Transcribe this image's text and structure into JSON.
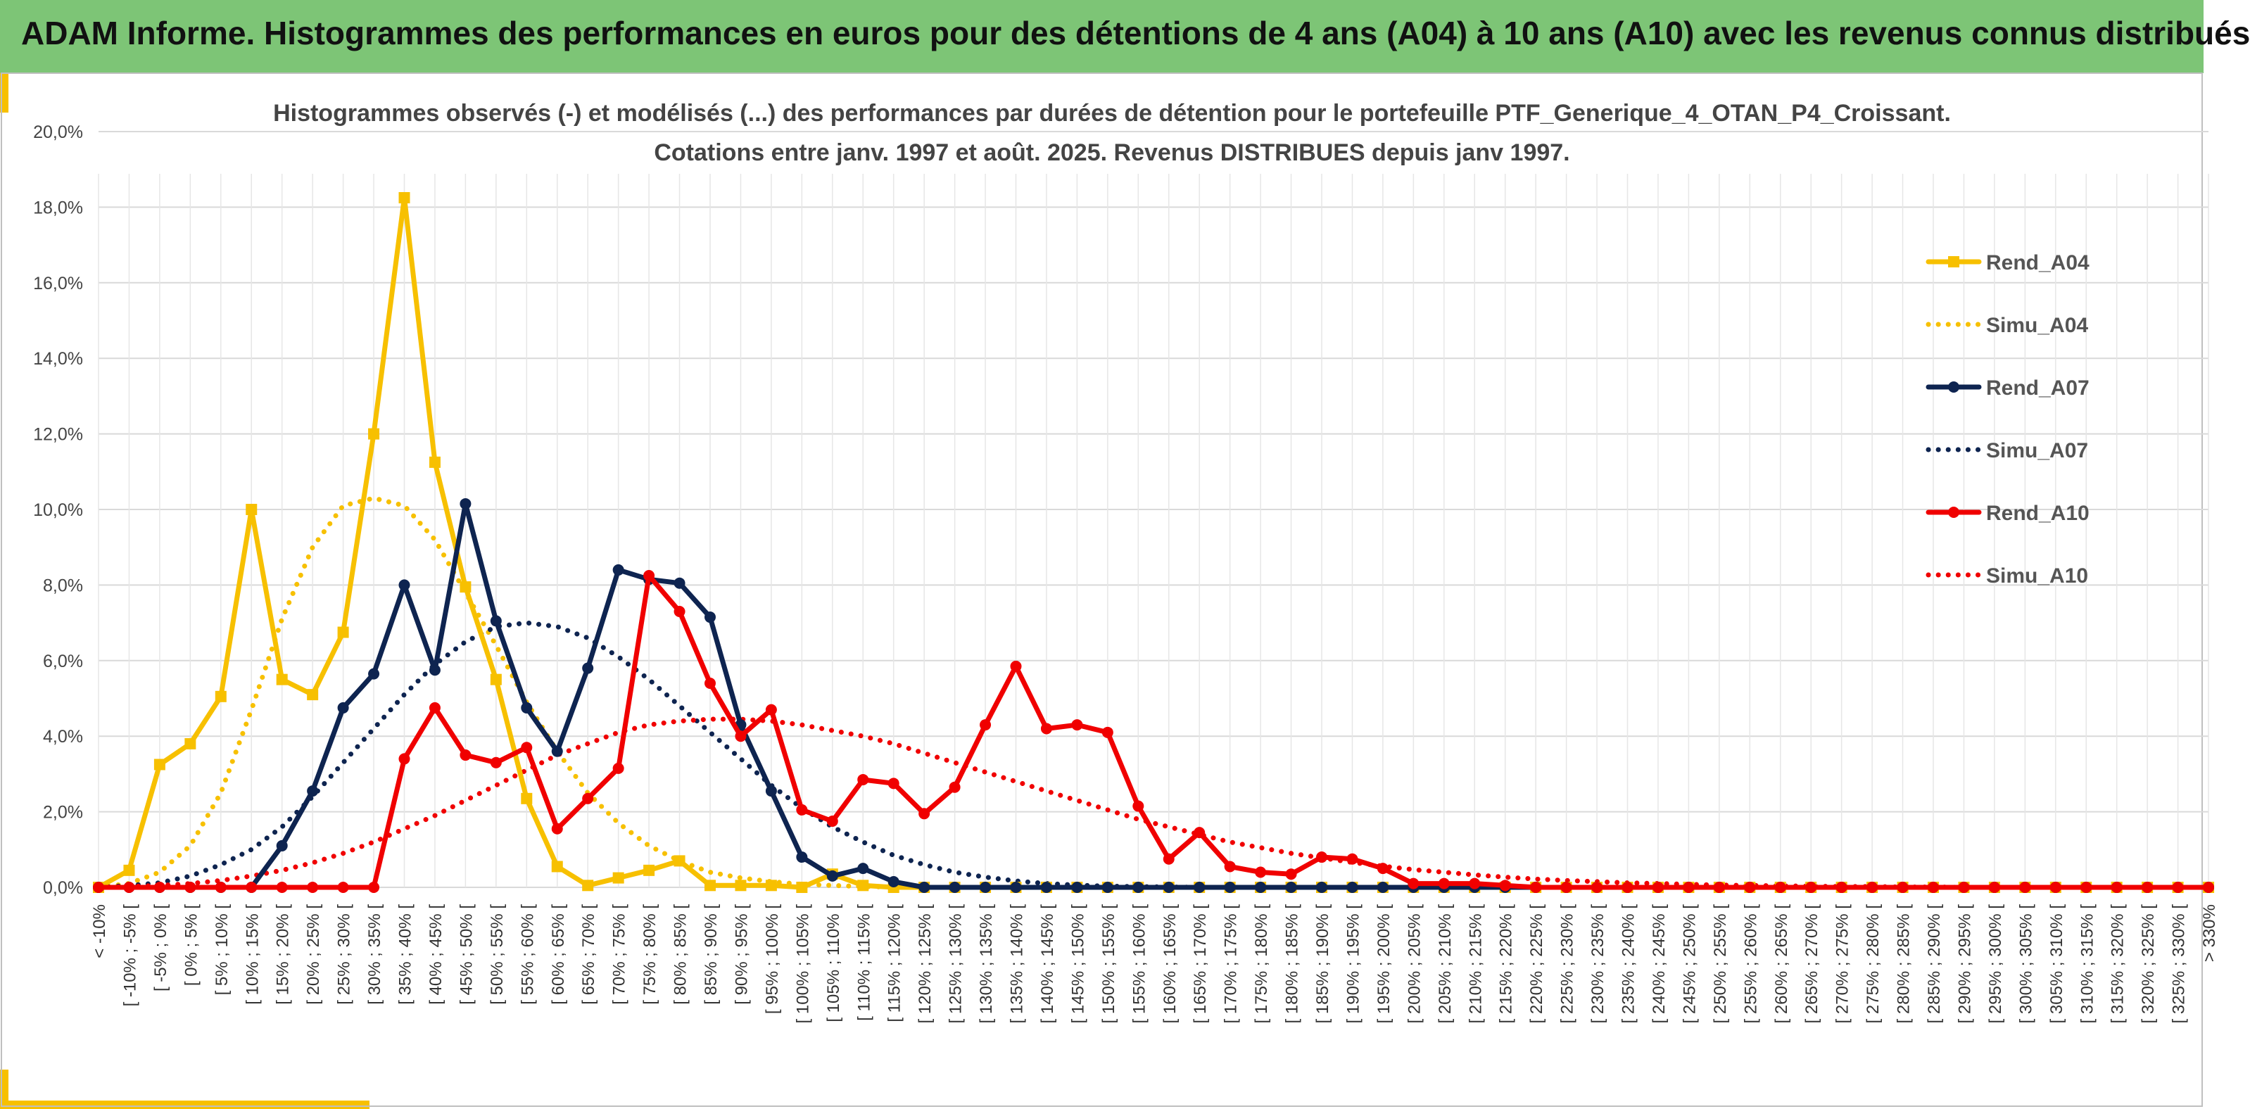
{
  "header": {
    "title": "ADAM Informe. Histogrammes des performances en euros pour des détentions de 4 ans (A04) à 10 ans (A10) avec les revenus connus distribués"
  },
  "colors": {
    "header_bg": "#7dc576",
    "A04": "#f7c000",
    "A07": "#0e2450",
    "A10": "#f00000",
    "grid": "#d9d9d9",
    "accent": "#f7c000"
  },
  "chart_data": {
    "type": "line",
    "title": "Histogrammes observés (-) et modélisés (...) des performances par durées de détention pour le portefeuille PTF_Generique_4_OTAN_P4_Croissant.",
    "subtitle": "Cotations entre janv. 1997 et août. 2025. Revenus DISTRIBUES depuis janv 1997.",
    "ylim": [
      0,
      20
    ],
    "yticks": [
      "0,0%",
      "2,0%",
      "4,0%",
      "6,0%",
      "8,0%",
      "10,0%",
      "12,0%",
      "14,0%",
      "16,0%",
      "18,0%",
      "20,0%"
    ],
    "grid": true,
    "legend_position": "right",
    "categories": [
      "< -10%",
      "[ -10% ; -5% [",
      "[ -5% ; 0% [",
      "[ 0% ; 5% [",
      "[ 5% ; 10% [",
      "[ 10% ; 15% [",
      "[ 15% ; 20% [",
      "[ 20% ; 25% [",
      "[ 25% ; 30% [",
      "[ 30% ; 35% [",
      "[ 35% ; 40% [",
      "[ 40% ; 45% [",
      "[ 45% ; 50% [",
      "[ 50% ; 55% [",
      "[ 55% ; 60% [",
      "[ 60% ; 65% [",
      "[ 65% ; 70% [",
      "[ 70% ; 75% [",
      "[ 75% ; 80% [",
      "[ 80% ; 85% [",
      "[ 85% ; 90% [",
      "[ 90% ; 95% [",
      "[ 95% ; 100% [",
      "[ 100% ; 105% [",
      "[ 105% ; 110% [",
      "[ 110% ; 115% [",
      "[ 115% ; 120% [",
      "[ 120% ; 125% [",
      "[ 125% ; 130% [",
      "[ 130% ; 135% [",
      "[ 135% ; 140% [",
      "[ 140% ; 145% [",
      "[ 145% ; 150% [",
      "[ 150% ; 155% [",
      "[ 155% ; 160% [",
      "[ 160% ; 165% [",
      "[ 165% ; 170% [",
      "[ 170% ; 175% [",
      "[ 175% ; 180% [",
      "[ 180% ; 185% [",
      "[ 185% ; 190% [",
      "[ 190% ; 195% [",
      "[ 195% ; 200% [",
      "[ 200% ; 205% [",
      "[ 205% ; 210% [",
      "[ 210% ; 215% [",
      "[ 215% ; 220% [",
      "[ 220% ; 225% [",
      "[ 225% ; 230% [",
      "[ 230% ; 235% [",
      "[ 235% ; 240% [",
      "[ 240% ; 245% [",
      "[ 245% ; 250% [",
      "[ 250% ; 255% [",
      "[ 255% ; 260% [",
      "[ 260% ; 265% [",
      "[ 265% ; 270% [",
      "[ 270% ; 275% [",
      "[ 275% ; 280% [",
      "[ 280% ; 285% [",
      "[ 285% ; 290% [",
      "[ 290% ; 295% [",
      "[ 295% ; 300% [",
      "[ 300% ; 305% [",
      "[ 305% ; 310% [",
      "[ 310% ; 315% [",
      "[ 315% ; 320% [",
      "[ 320% ; 325% [",
      "[ 325% ; 330% [",
      "> 330%"
    ],
    "series": [
      {
        "name": "Rend_A04",
        "style": "solid",
        "marker": "square",
        "color": "#f7c000",
        "values": [
          0,
          0.45,
          3.25,
          3.8,
          5.05,
          10.0,
          5.5,
          5.1,
          6.75,
          12.0,
          18.25,
          11.25,
          7.95,
          5.5,
          2.35,
          0.55,
          0.05,
          0.25,
          0.45,
          0.7,
          0.05,
          0.05,
          0.05,
          0.0,
          0.35,
          0.05,
          0.0,
          0.0,
          0.0,
          0.0,
          0.0,
          0.0,
          0.0,
          0.0,
          0.0,
          0.0,
          0.0,
          0.0,
          0.0,
          0.0,
          0.0,
          0.0,
          0.0,
          0.0,
          0.0,
          0.0,
          0.0,
          0.0,
          0.0,
          0.0,
          0.0,
          0.0,
          0.0,
          0.0,
          0.0,
          0.0,
          0.0,
          0.0,
          0.0,
          0.0,
          0.0,
          0.0,
          0.0,
          0.0,
          0.0,
          0.0,
          0.0,
          0.0,
          0.0,
          0.0
        ]
      },
      {
        "name": "Simu_A04",
        "style": "dotted",
        "marker": "none",
        "color": "#f7c000",
        "values": [
          0.0,
          0.1,
          0.4,
          1.1,
          2.5,
          4.7,
          7.1,
          9.0,
          10.1,
          10.3,
          10.1,
          9.2,
          7.8,
          6.4,
          4.9,
          3.6,
          2.5,
          1.7,
          1.1,
          0.7,
          0.4,
          0.25,
          0.15,
          0.08,
          0.05,
          0.02,
          0.01,
          0.0,
          0.0,
          0.0,
          0.0,
          0.0,
          0.0,
          0.0,
          0.0,
          0.0,
          0.0,
          0.0,
          0.0,
          0.0,
          0.0,
          0.0,
          0.0,
          0.0,
          0.0,
          0.0,
          0.0,
          0.0,
          0.0,
          0.0,
          0.0,
          0.0,
          0.0,
          0.0,
          0.0,
          0.0,
          0.0,
          0.0,
          0.0,
          0.0,
          0.0,
          0.0,
          0.0,
          0.0,
          0.0,
          0.0,
          0.0,
          0.0,
          0.0,
          0.0
        ]
      },
      {
        "name": "Rend_A07",
        "style": "solid",
        "marker": "circle",
        "color": "#0e2450",
        "values": [
          0,
          0,
          0,
          0,
          0,
          0,
          1.1,
          2.55,
          4.75,
          5.65,
          8.0,
          5.75,
          10.15,
          7.05,
          4.75,
          3.6,
          5.8,
          8.4,
          8.15,
          8.05,
          7.15,
          4.3,
          2.55,
          0.8,
          0.3,
          0.5,
          0.15,
          0.0,
          0.0,
          0.0,
          0.0,
          0.0,
          0.0,
          0.0,
          0.0,
          0.0,
          0.0,
          0.0,
          0.0,
          0.0,
          0.0,
          0.0,
          0.0,
          0.0,
          0.0,
          0.0,
          0.0,
          0.0,
          0.0,
          0.0,
          0.0,
          0.0,
          0.0,
          0.0,
          0.0,
          0.0,
          0.0,
          0.0,
          0.0,
          0.0,
          0.0,
          0.0,
          0.0,
          0.0,
          0.0,
          0.0,
          0.0,
          0.0,
          0.0,
          0.0
        ]
      },
      {
        "name": "Simu_A07",
        "style": "dotted",
        "marker": "none",
        "color": "#0e2450",
        "values": [
          0.0,
          0.05,
          0.12,
          0.3,
          0.6,
          1.0,
          1.6,
          2.4,
          3.3,
          4.2,
          5.1,
          5.9,
          6.5,
          6.9,
          7.0,
          6.9,
          6.6,
          6.1,
          5.5,
          4.8,
          4.1,
          3.4,
          2.7,
          2.1,
          1.6,
          1.2,
          0.85,
          0.6,
          0.4,
          0.27,
          0.17,
          0.1,
          0.06,
          0.03,
          0.02,
          0.01,
          0.0,
          0.0,
          0.0,
          0.0,
          0.0,
          0.0,
          0.0,
          0.0,
          0.0,
          0.0,
          0.0,
          0.0,
          0.0,
          0.0,
          0.0,
          0.0,
          0.0,
          0.0,
          0.0,
          0.0,
          0.0,
          0.0,
          0.0,
          0.0,
          0.0,
          0.0,
          0.0,
          0.0,
          0.0,
          0.0,
          0.0,
          0.0,
          0.0,
          0.0
        ]
      },
      {
        "name": "Rend_A10",
        "style": "solid",
        "marker": "circle",
        "color": "#f00000",
        "values": [
          0,
          0,
          0,
          0,
          0,
          0,
          0,
          0,
          0,
          0,
          3.4,
          4.75,
          3.5,
          3.3,
          3.7,
          1.55,
          2.35,
          3.15,
          8.25,
          7.3,
          5.4,
          4.0,
          4.7,
          2.05,
          1.75,
          2.85,
          2.75,
          1.95,
          2.65,
          4.3,
          5.85,
          4.2,
          4.3,
          4.1,
          2.15,
          0.75,
          1.45,
          0.55,
          0.4,
          0.35,
          0.8,
          0.75,
          0.5,
          0.1,
          0.1,
          0.1,
          0.05,
          0.0,
          0.0,
          0.0,
          0.0,
          0.0,
          0.0,
          0.0,
          0.0,
          0.0,
          0.0,
          0.0,
          0.0,
          0.0,
          0.0,
          0.0,
          0.0,
          0.0,
          0.0,
          0.0,
          0.0,
          0.0,
          0.0,
          0.0
        ]
      },
      {
        "name": "Simu_A10",
        "style": "dotted",
        "marker": "none",
        "color": "#f00000",
        "values": [
          0.0,
          0.02,
          0.05,
          0.1,
          0.18,
          0.3,
          0.45,
          0.65,
          0.9,
          1.2,
          1.55,
          1.9,
          2.3,
          2.7,
          3.1,
          3.5,
          3.8,
          4.1,
          4.3,
          4.4,
          4.45,
          4.45,
          4.4,
          4.3,
          4.15,
          4.0,
          3.8,
          3.55,
          3.3,
          3.05,
          2.8,
          2.55,
          2.3,
          2.05,
          1.8,
          1.6,
          1.4,
          1.2,
          1.05,
          0.9,
          0.78,
          0.66,
          0.56,
          0.47,
          0.4,
          0.33,
          0.27,
          0.22,
          0.18,
          0.15,
          0.12,
          0.1,
          0.08,
          0.06,
          0.05,
          0.04,
          0.03,
          0.02,
          0.02,
          0.01,
          0.01,
          0.0,
          0.0,
          0.0,
          0.0,
          0.0,
          0.0,
          0.0,
          0.0,
          0.0
        ]
      }
    ]
  }
}
